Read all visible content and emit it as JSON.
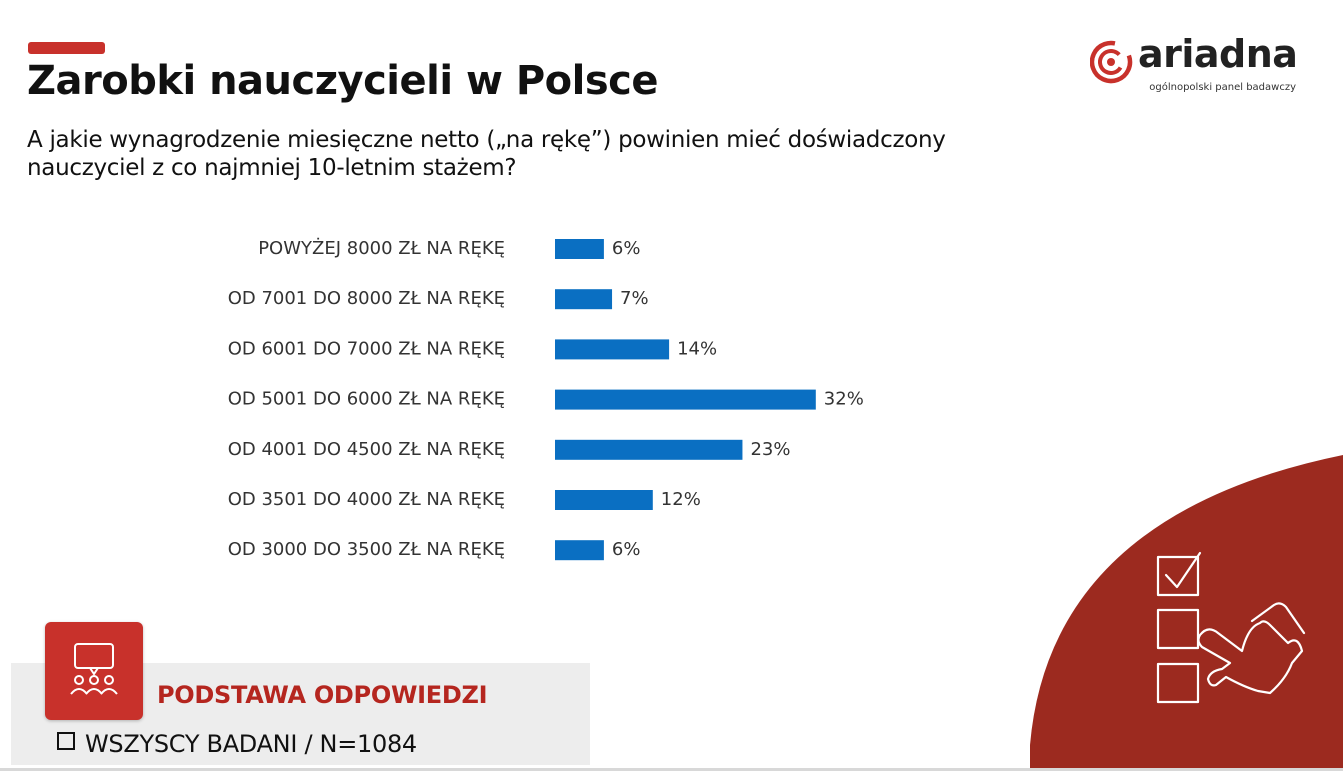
{
  "header": {
    "title": "Zarobki nauczycieli w Polsce",
    "question": "A jakie wynagrodzenie miesięczne netto („na rękę”) powinien mieć doświadczony nauczyciel z co najmniej 10-letnim stażem?"
  },
  "logo": {
    "name": "ariadna",
    "tagline": "ogólnopolski panel badawczy",
    "icon": "ariadna-swirl-icon"
  },
  "colors": {
    "accent": "#c8312b",
    "bar": "#0a6fc2",
    "dark_red": "#9c2a1f"
  },
  "chart_data": {
    "type": "bar",
    "orientation": "horizontal",
    "categories": [
      "POWYŻEJ 8000 ZŁ NA RĘKĘ",
      "OD 7001 DO 8000 ZŁ NA RĘKĘ",
      "OD 6001 DO 7000 ZŁ NA RĘKĘ",
      "OD 5001 DO 6000 ZŁ NA RĘKĘ",
      "OD 4001 DO 4500 ZŁ NA RĘKĘ",
      "OD 3501 DO 4000 ZŁ NA RĘKĘ",
      "OD 3000 DO 3500 ZŁ NA RĘKĘ"
    ],
    "values": [
      6,
      7,
      14,
      32,
      23,
      12,
      6
    ],
    "value_labels": [
      "6%",
      "7%",
      "14%",
      "32%",
      "23%",
      "12%",
      "6%"
    ],
    "unit": "%",
    "grid": false,
    "legend": "none"
  },
  "base": {
    "heading": "PODSTAWA ODPOWIEDZI",
    "item": "WSZYSCY BADANI / N=1084",
    "icon": "discussion-group-icon"
  },
  "decor": {
    "icon": "checklist-hand-icon"
  }
}
